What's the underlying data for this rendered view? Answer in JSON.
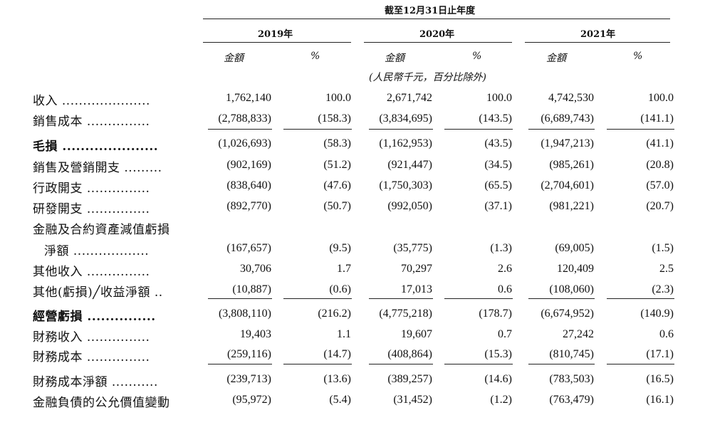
{
  "header": {
    "period": "截至12月31日止年度",
    "years": [
      "2019年",
      "2020年",
      "2021年"
    ],
    "amount_label": "金額",
    "percent_label": "%",
    "unit_note": "(人民幣千元，百分比除外)"
  },
  "rows": [
    {
      "label": "收入 .....................",
      "bold": false,
      "v": [
        "1,762,140",
        "100.0",
        "2,671,742",
        "100.0",
        "4,742,530",
        "100.0"
      ]
    },
    {
      "label": "銷售成本 ...............",
      "bold": false,
      "v": [
        "(2,788,833)",
        "(158.3)",
        "(3,834,695)",
        "(143.5)",
        "(6,689,743)",
        "(141.1)"
      ]
    },
    {
      "label": "毛損 .....................",
      "bold": true,
      "v": [
        "(1,026,693)",
        "(58.3)",
        "(1,162,953)",
        "(43.5)",
        "(1,947,213)",
        "(41.1)"
      ]
    },
    {
      "label": "銷售及營銷開支 .........",
      "bold": false,
      "v": [
        "(902,169)",
        "(51.2)",
        "(921,447)",
        "(34.5)",
        "(985,261)",
        "(20.8)"
      ]
    },
    {
      "label": "行政開支 ...............",
      "bold": false,
      "v": [
        "(838,640)",
        "(47.6)",
        "(1,750,303)",
        "(65.5)",
        "(2,704,601)",
        "(57.0)"
      ]
    },
    {
      "label": "研發開支 ...............",
      "bold": false,
      "v": [
        "(892,770)",
        "(50.7)",
        "(992,050)",
        "(37.1)",
        "(981,221)",
        "(20.7)"
      ]
    },
    {
      "label": "金融及合約資產減值虧損",
      "bold": false,
      "v": [
        "",
        "",
        "",
        "",
        "",
        ""
      ]
    },
    {
      "label": "淨額 ..................",
      "bold": false,
      "indent": true,
      "v": [
        "(167,657)",
        "(9.5)",
        "(35,775)",
        "(1.3)",
        "(69,005)",
        "(1.5)"
      ]
    },
    {
      "label": "其他收入 ...............",
      "bold": false,
      "v": [
        "30,706",
        "1.7",
        "70,297",
        "2.6",
        "120,409",
        "2.5"
      ]
    },
    {
      "label": "其他(虧損)╱收益淨額 ..",
      "bold": false,
      "v": [
        "(10,887)",
        "(0.6)",
        "17,013",
        "0.6",
        "(108,060)",
        "(2.3)"
      ]
    },
    {
      "label": "經營虧損 ...............",
      "bold": true,
      "v": [
        "(3,808,110)",
        "(216.2)",
        "(4,775,218)",
        "(178.7)",
        "(6,674,952)",
        "(140.9)"
      ]
    },
    {
      "label": "財務收入 ...............",
      "bold": false,
      "v": [
        "19,403",
        "1.1",
        "19,607",
        "0.7",
        "27,242",
        "0.6"
      ]
    },
    {
      "label": "財務成本 ...............",
      "bold": false,
      "v": [
        "(259,116)",
        "(14.7)",
        "(408,864)",
        "(15.3)",
        "(810,745)",
        "(17.1)"
      ]
    },
    {
      "label": "財務成本淨額 ...........",
      "bold": false,
      "v": [
        "(239,713)",
        "(13.6)",
        "(389,257)",
        "(14.6)",
        "(783,503)",
        "(16.5)"
      ]
    },
    {
      "label": "金融負債的公允價值變動",
      "bold": false,
      "v": [
        "(95,972)",
        "(5.4)",
        "(31,452)",
        "(1.2)",
        "(763,479)",
        "(16.1)"
      ]
    }
  ]
}
